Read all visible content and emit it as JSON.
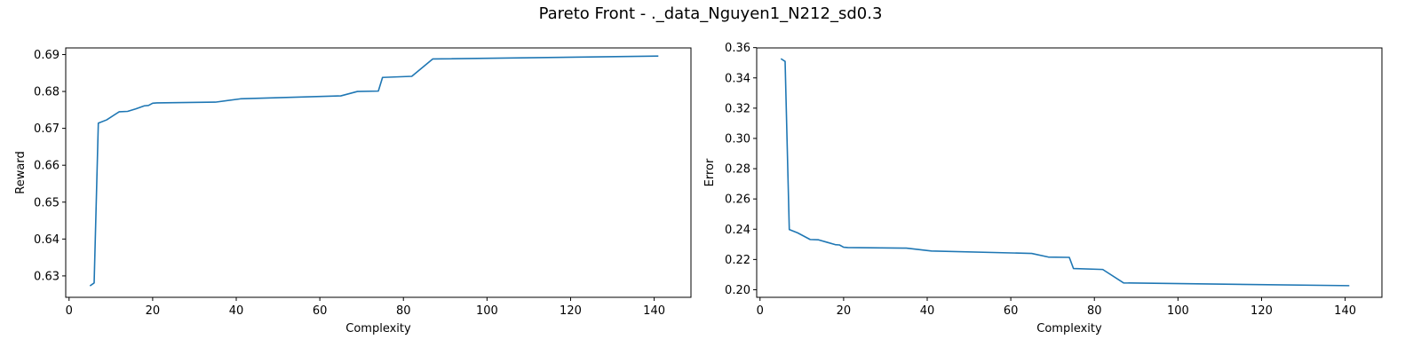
{
  "figure": {
    "title": "Pareto Front - ._data_Nguyen1_N212_sd0.3"
  },
  "chart_data": [
    {
      "type": "line",
      "title": "",
      "xlabel": "Complexity",
      "ylabel": "Reward",
      "xlim": [
        -0.8,
        148.8
      ],
      "ylim": [
        0.6242,
        0.6918
      ],
      "xticks": [
        0,
        20,
        40,
        60,
        80,
        100,
        120,
        140
      ],
      "yticks": [
        0.63,
        0.64,
        0.65,
        0.66,
        0.67,
        0.68,
        0.69
      ],
      "ytick_decimals": 2,
      "grid": false,
      "line_color": "#1f77b4",
      "series": [
        {
          "x": [
            5,
            6,
            7,
            9,
            12,
            14,
            16,
            18,
            19,
            20,
            21,
            35,
            41,
            65,
            69,
            74,
            75,
            82,
            87,
            141
          ],
          "y": [
            0.6273,
            0.6281,
            0.6714,
            0.6723,
            0.6745,
            0.6746,
            0.6753,
            0.6761,
            0.6762,
            0.6768,
            0.6769,
            0.6771,
            0.678,
            0.6788,
            0.68,
            0.6801,
            0.6838,
            0.6841,
            0.6888,
            0.6896
          ]
        }
      ]
    },
    {
      "type": "line",
      "title": "",
      "xlabel": "Complexity",
      "ylabel": "Error",
      "xlim": [
        -0.8,
        148.8
      ],
      "ylim": [
        0.195,
        0.3598
      ],
      "xticks": [
        0,
        20,
        40,
        60,
        80,
        100,
        120,
        140
      ],
      "yticks": [
        0.2,
        0.22,
        0.24,
        0.26,
        0.28,
        0.3,
        0.32,
        0.34,
        0.36
      ],
      "ytick_decimals": 2,
      "grid": false,
      "line_color": "#1f77b4",
      "series": [
        {
          "x": [
            5,
            6,
            7,
            9,
            12,
            14,
            16,
            18,
            19,
            20,
            21,
            35,
            41,
            65,
            69,
            74,
            75,
            82,
            87,
            141
          ],
          "y": [
            0.3527,
            0.3509,
            0.2398,
            0.2376,
            0.2332,
            0.233,
            0.2314,
            0.2298,
            0.2296,
            0.2281,
            0.2279,
            0.2275,
            0.2256,
            0.224,
            0.2216,
            0.2214,
            0.214,
            0.2134,
            0.2045,
            0.2027
          ]
        }
      ]
    }
  ]
}
